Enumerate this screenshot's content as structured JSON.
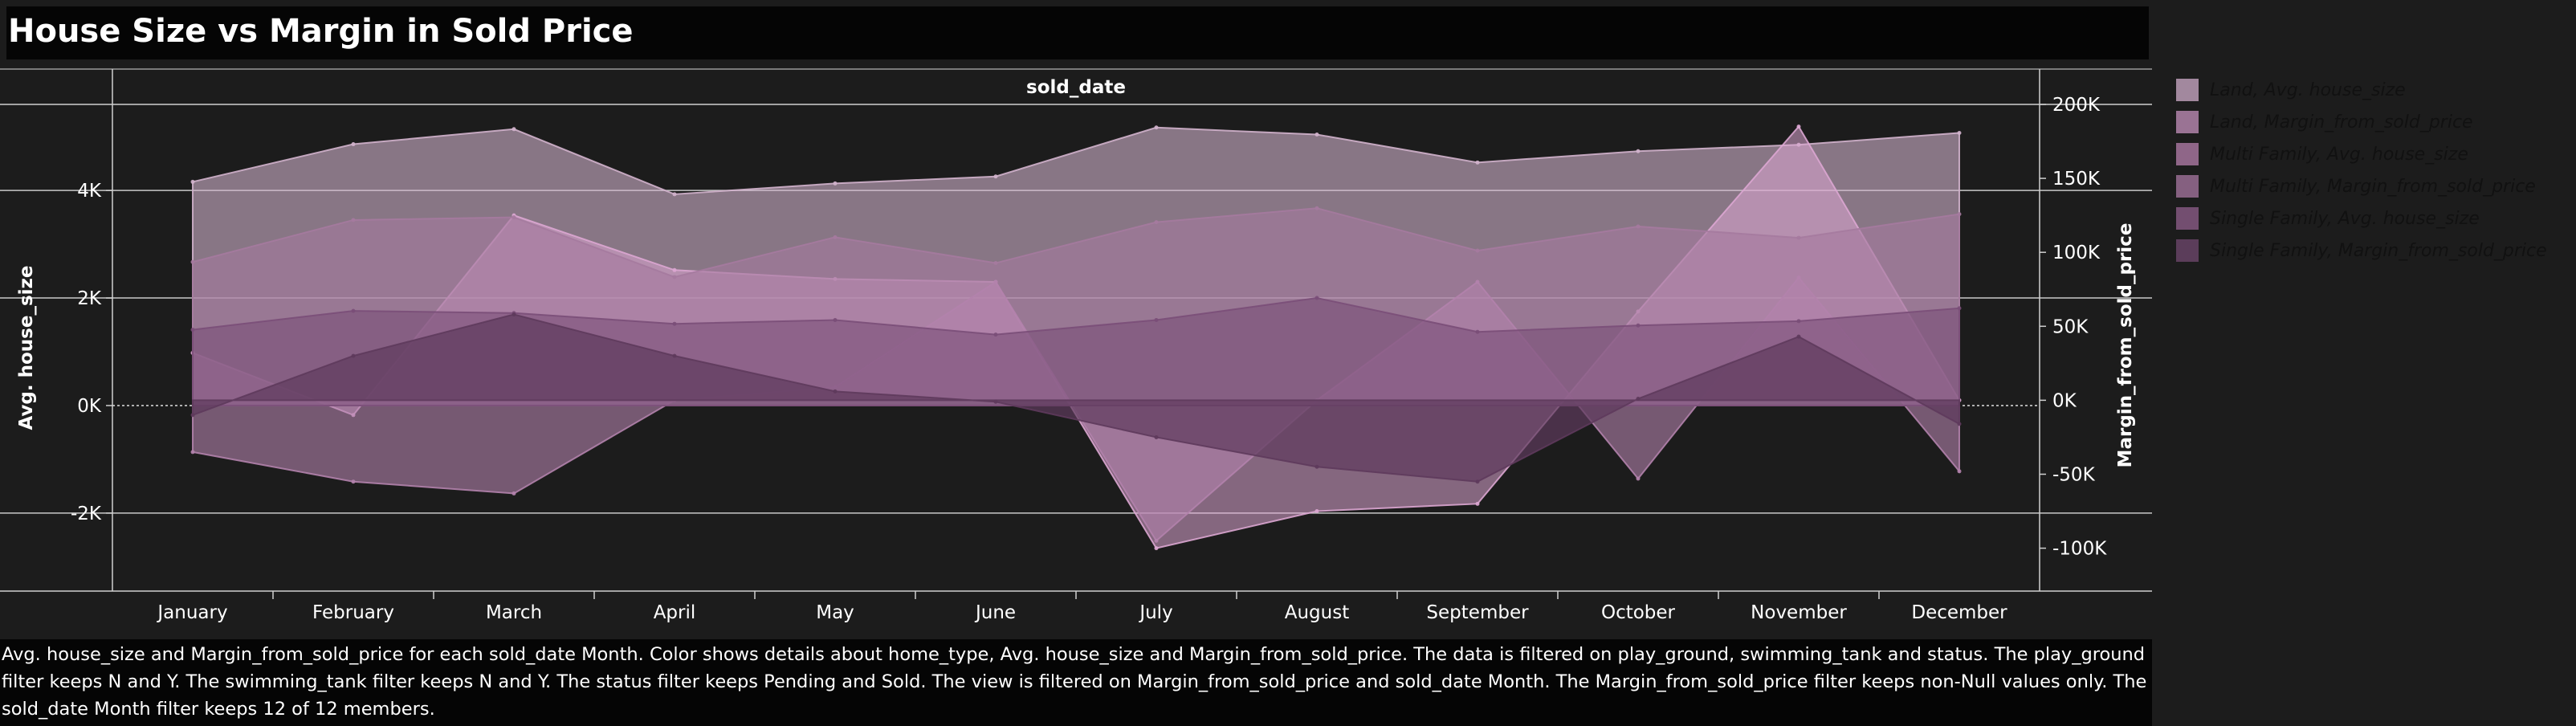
{
  "page": {
    "title": "House Size vs Margin in Sold Price",
    "caption": "Avg. house_size and Margin_from_sold_price for each sold_date Month.  Color shows details about home_type, Avg. house_size and Margin_from_sold_price. The data is filtered on play_ground, swimming_tank and status. The play_ground filter keeps N and Y. The swimming_tank filter keeps N and Y. The status filter keeps Pending and Sold. The view is filtered on Margin_from_sold_price and sold_date Month. The Margin_from_sold_price filter keeps non-Null values only. The sold_date Month filter keeps 12 of 12 members."
  },
  "chart_data": {
    "type": "area",
    "title": "House Size vs Margin in Sold Price",
    "column_header": "sold_date",
    "categories": [
      "January",
      "February",
      "March",
      "April",
      "May",
      "June",
      "July",
      "August",
      "September",
      "October",
      "November",
      "December"
    ],
    "y_left": {
      "label": "Avg. house_size",
      "ticks": [
        -2000,
        0,
        2000,
        4000
      ],
      "tick_labels": [
        "-2K",
        "0K",
        "2K",
        "4K"
      ],
      "range": [
        -3450,
        5600
      ]
    },
    "y_right": {
      "label": "Margin_from_sold_price",
      "ticks": [
        -100000,
        -50000,
        0,
        50000,
        100000,
        150000,
        200000
      ],
      "tick_labels": [
        "-100K",
        "-50K",
        "0K",
        "50K",
        "100K",
        "150K",
        "200K"
      ],
      "range": [
        -129000,
        200000
      ]
    },
    "grid": true,
    "legend_position": "right",
    "series": [
      {
        "name": "Land, Avg. house_size",
        "axis": "left",
        "color": "#d1b3cc",
        "opacity": 0.6,
        "values": [
          4160,
          4860,
          5140,
          3930,
          4130,
          4260,
          5170,
          5040,
          4520,
          4730,
          4850,
          5070
        ]
      },
      {
        "name": "Land, Margin_from_sold_price",
        "axis": "right",
        "color": "#dca6d2",
        "opacity": 0.55,
        "values": [
          32000,
          -10000,
          125000,
          88000,
          82000,
          80000,
          -100000,
          -75000,
          -70000,
          60000,
          185000,
          0
        ]
      },
      {
        "name": "Multi Family, Avg. house_size",
        "axis": "left",
        "color": "#a57a9f",
        "opacity": 0.6,
        "values": [
          2670,
          3450,
          3500,
          2390,
          3130,
          2650,
          3410,
          3670,
          2880,
          3330,
          3120,
          3560
        ]
      },
      {
        "name": "Multi Family, Margin_from_sold_price",
        "axis": "right",
        "color": "#b382ac",
        "opacity": 0.6,
        "values": [
          -35000,
          -55000,
          -63000,
          0,
          9000,
          80000,
          -95000,
          0,
          80000,
          -53000,
          83000,
          -48000
        ]
      },
      {
        "name": "Single Family, Avg. house_size",
        "axis": "left",
        "color": "#7a4e78",
        "opacity": 0.6,
        "values": [
          1410,
          1760,
          1720,
          1520,
          1590,
          1320,
          1590,
          2000,
          1370,
          1490,
          1570,
          1810
        ]
      },
      {
        "name": "Single Family, Margin_from_sold_price",
        "axis": "right",
        "color": "#5e3a5c",
        "opacity": 0.7,
        "values": [
          -10000,
          30000,
          58000,
          30000,
          6000,
          -1000,
          -25000,
          -45000,
          -55000,
          1000,
          43000,
          -16000
        ]
      }
    ]
  },
  "legend": {
    "swatch_colors": [
      "#a2889e",
      "#9a7394",
      "#8f6688",
      "#856080",
      "#734e70",
      "#5b3d5a"
    ]
  }
}
